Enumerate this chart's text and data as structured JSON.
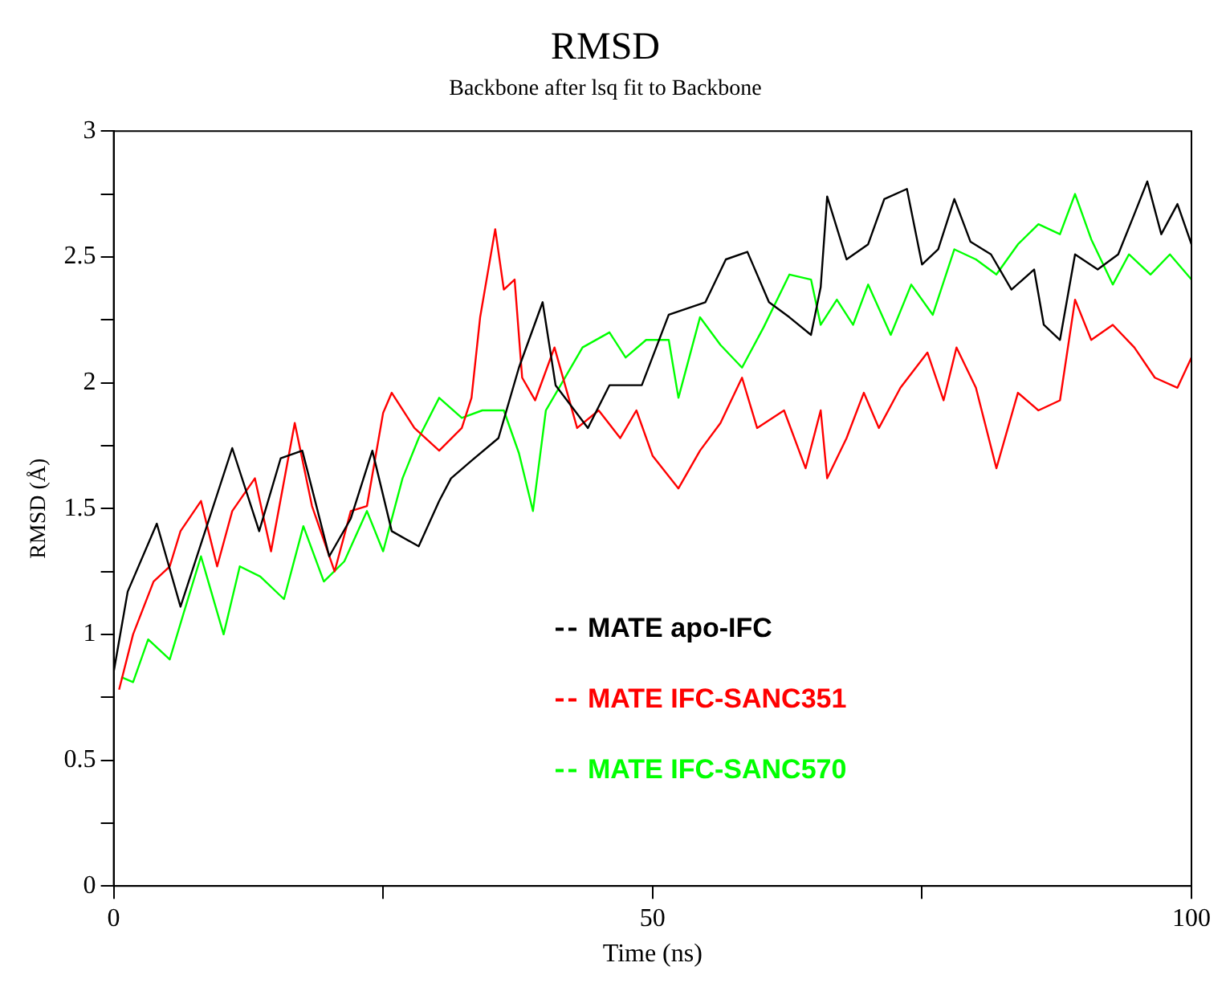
{
  "chart_data": {
    "type": "line",
    "title": "RMSD",
    "subtitle": "Backbone after lsq fit to Backbone",
    "xlabel": "Time (ns)",
    "ylabel": "RMSD (Å)",
    "xlim": [
      0,
      100
    ],
    "xticks": [
      0,
      {
        "value": 25,
        "label": null
      },
      50,
      {
        "value": 75,
        "label": null
      },
      100
    ],
    "ylim": [
      0,
      3
    ],
    "yticks": [
      0,
      {
        "value": 0.25,
        "label": null
      },
      0.5,
      {
        "value": 0.75,
        "label": null
      },
      1,
      {
        "value": 1.25,
        "label": null
      },
      1.5,
      {
        "value": 1.75,
        "label": null
      },
      2,
      {
        "value": 2.25,
        "label": null
      },
      2.5,
      {
        "value": 2.75,
        "label": null
      },
      3
    ],
    "grid": false,
    "legend": "center",
    "marker": "none",
    "line_style": "solid",
    "series": [
      {
        "name": "MATE apo-IFC",
        "color": "#000000",
        "x": [
          0,
          1.3,
          4,
          6.2,
          11,
          13.5,
          15.5,
          17.5,
          20,
          22,
          24,
          25.8,
          28.3,
          30.2,
          31.3,
          33.2,
          35.7,
          37.6,
          39.8,
          41,
          44,
          46,
          49,
          51.5,
          54.9,
          56.8,
          58.8,
          60.8,
          62.7,
          64.7,
          65.6,
          66.2,
          68,
          70,
          71.5,
          73.6,
          75,
          76.5,
          78,
          79.5,
          81.4,
          83.3,
          85.4,
          86.3,
          87.8,
          89.2,
          91.3,
          93.2,
          94.7,
          95.9,
          97.2,
          98.7,
          100
        ],
        "values": [
          0.85,
          1.17,
          1.44,
          1.11,
          1.74,
          1.41,
          1.7,
          1.73,
          1.31,
          1.46,
          1.73,
          1.41,
          1.35,
          1.53,
          1.62,
          1.69,
          1.78,
          2.06,
          2.32,
          1.99,
          1.82,
          1.99,
          1.99,
          2.27,
          2.32,
          2.49,
          2.52,
          2.32,
          2.26,
          2.19,
          2.38,
          2.74,
          2.49,
          2.55,
          2.73,
          2.77,
          2.47,
          2.53,
          2.73,
          2.56,
          2.51,
          2.37,
          2.45,
          2.23,
          2.17,
          2.51,
          2.45,
          2.51,
          2.67,
          2.8,
          2.59,
          2.71,
          2.55
        ]
      },
      {
        "name": "MATE IFC-SANC351",
        "color": "#ff0000",
        "x": [
          0.5,
          1.8,
          3.7,
          5.2,
          6.2,
          8.1,
          9.6,
          11,
          13.1,
          14.6,
          16.8,
          18.4,
          20.5,
          22,
          23.5,
          25,
          25.8,
          27.9,
          30.2,
          32.3,
          33.2,
          34,
          35.4,
          36.2,
          37.2,
          37.9,
          39.1,
          40.9,
          43,
          45,
          47,
          48.5,
          50,
          52.4,
          54.4,
          56.3,
          58.3,
          59.7,
          62.2,
          64.2,
          65.6,
          66.2,
          68,
          69.6,
          71,
          73,
          75.5,
          77,
          78.2,
          80,
          81.9,
          83.9,
          85.8,
          87.8,
          89.2,
          90.7,
          92.7,
          94.7,
          96.6,
          98.7,
          100
        ],
        "values": [
          0.78,
          1.0,
          1.21,
          1.27,
          1.41,
          1.53,
          1.27,
          1.49,
          1.62,
          1.33,
          1.84,
          1.51,
          1.25,
          1.49,
          1.51,
          1.88,
          1.96,
          1.82,
          1.73,
          1.82,
          1.94,
          2.26,
          2.61,
          2.37,
          2.41,
          2.02,
          1.93,
          2.14,
          1.82,
          1.89,
          1.78,
          1.89,
          1.71,
          1.58,
          1.73,
          1.84,
          2.02,
          1.82,
          1.89,
          1.66,
          1.89,
          1.62,
          1.78,
          1.96,
          1.82,
          1.98,
          2.12,
          1.93,
          2.14,
          1.98,
          1.66,
          1.96,
          1.89,
          1.93,
          2.33,
          2.17,
          2.23,
          2.14,
          2.02,
          1.98,
          2.1
        ]
      },
      {
        "name": "MATE IFC-SANC570",
        "color": "#00ff00",
        "x": [
          0.7,
          1.8,
          3.2,
          5.2,
          6.6,
          8.1,
          10.2,
          11.7,
          13.6,
          15.8,
          17.6,
          19.5,
          21.4,
          23.5,
          25,
          26.8,
          28.3,
          30.2,
          32.3,
          34.2,
          36.2,
          37.6,
          38.9,
          40.1,
          41.6,
          43.5,
          46,
          47.5,
          49.4,
          51.5,
          52.4,
          54.4,
          56.3,
          58.3,
          60.3,
          62.7,
          64.7,
          65.6,
          67.1,
          68.6,
          70,
          72.1,
          74,
          76,
          78,
          80,
          81.9,
          83.9,
          85.8,
          87.8,
          89.2,
          90.7,
          92.7,
          94.2,
          96.2,
          98,
          100
        ],
        "values": [
          0.83,
          0.81,
          0.98,
          0.9,
          1.1,
          1.31,
          1.0,
          1.27,
          1.23,
          1.14,
          1.43,
          1.21,
          1.29,
          1.49,
          1.33,
          1.62,
          1.78,
          1.94,
          1.86,
          1.89,
          1.89,
          1.72,
          1.49,
          1.89,
          2.0,
          2.14,
          2.2,
          2.1,
          2.17,
          2.17,
          1.94,
          2.26,
          2.15,
          2.06,
          2.22,
          2.43,
          2.41,
          2.23,
          2.33,
          2.23,
          2.39,
          2.19,
          2.39,
          2.27,
          2.53,
          2.49,
          2.43,
          2.55,
          2.63,
          2.59,
          2.75,
          2.57,
          2.39,
          2.51,
          2.43,
          2.51,
          2.41
        ]
      }
    ]
  }
}
